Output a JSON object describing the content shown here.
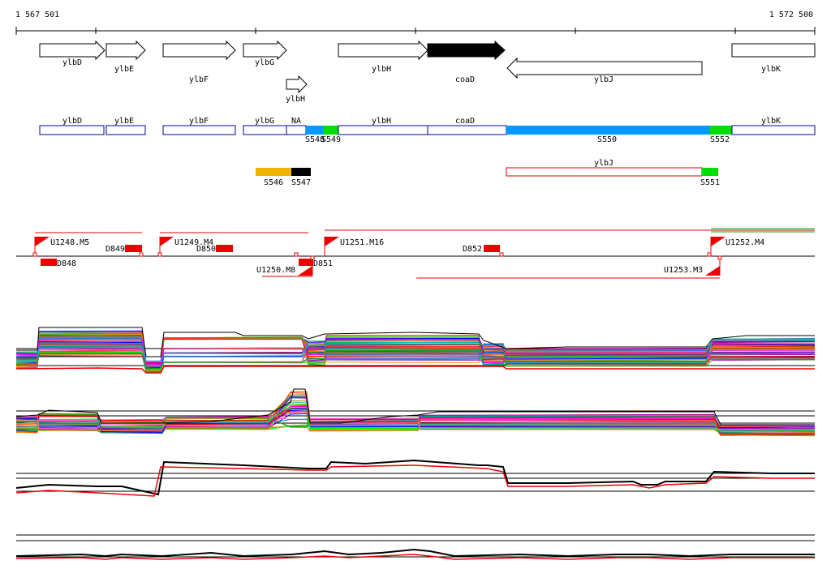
{
  "ruler": {
    "start_label": "1 567 501",
    "end_label": "1 572 500"
  },
  "genes": [
    {
      "id": "ylbD",
      "label": "ylbD",
      "strand": "+",
      "color": "#ffffff"
    },
    {
      "id": "ylbE",
      "label": "ylbE",
      "strand": "+",
      "color": "#ffffff"
    },
    {
      "id": "ylbF",
      "label": "ylbF",
      "strand": "+",
      "color": "#ffffff"
    },
    {
      "id": "ylbG",
      "label": "ylbG",
      "strand": "+",
      "color": "#ffffff"
    },
    {
      "id": "ylbH-small",
      "label": "ylbH",
      "strand": "+",
      "color": "#ffffff"
    },
    {
      "id": "ylbH",
      "label": "ylbH",
      "strand": "+",
      "color": "#ffffff"
    },
    {
      "id": "coaD",
      "label": "coaD",
      "strand": "+",
      "color": "#000000"
    },
    {
      "id": "ylbJ",
      "label": "ylbJ",
      "strand": "-",
      "color": "#ffffff"
    },
    {
      "id": "ylbK",
      "label": "ylbK",
      "strand": "+",
      "color": "#ffffff"
    }
  ],
  "segments_plus": [
    {
      "label": "ylbD",
      "kind": "gene"
    },
    {
      "label": "ylbE",
      "kind": "gene"
    },
    {
      "label": "ylbF",
      "kind": "gene"
    },
    {
      "label": "ylbG",
      "kind": "gene"
    },
    {
      "label": "NA",
      "kind": "gene"
    },
    {
      "label": "S548",
      "kind": "blue"
    },
    {
      "label": "S549",
      "kind": "green"
    },
    {
      "label": "ylbH",
      "kind": "gene"
    },
    {
      "label": "coaD",
      "kind": "gene"
    },
    {
      "label": "S550",
      "kind": "blue"
    },
    {
      "label": "S552",
      "kind": "green"
    },
    {
      "label": "ylbK",
      "kind": "gene"
    }
  ],
  "segments_minus": [
    {
      "label": "S546",
      "kind": "yellow"
    },
    {
      "label": "S547",
      "kind": "black"
    },
    {
      "label": "ylbJ",
      "kind": "gene-red"
    },
    {
      "label": "S551",
      "kind": "green"
    }
  ],
  "features": [
    {
      "label": "U1248.M5",
      "type": "upshift"
    },
    {
      "label": "U1249.M4",
      "type": "upshift"
    },
    {
      "label": "U1251.M16",
      "type": "upshift"
    },
    {
      "label": "U1252.M4",
      "type": "upshift"
    },
    {
      "label": "U1250.M8",
      "type": "upshift"
    },
    {
      "label": "U1253.M3",
      "type": "upshift"
    },
    {
      "label": "D848",
      "type": "downshift"
    },
    {
      "label": "D849",
      "type": "downshift"
    },
    {
      "label": "D850",
      "type": "downshift"
    },
    {
      "label": "D851",
      "type": "downshift"
    },
    {
      "label": "D852",
      "type": "downshift"
    }
  ],
  "colors": {
    "gene_outline": "#000000",
    "segment_outline": "#000099",
    "blue": "#0099ff",
    "green": "#00dd00",
    "yellow": "#f0b400",
    "black": "#000000",
    "red": "#ff0000",
    "feature_red": "#ee0000"
  }
}
